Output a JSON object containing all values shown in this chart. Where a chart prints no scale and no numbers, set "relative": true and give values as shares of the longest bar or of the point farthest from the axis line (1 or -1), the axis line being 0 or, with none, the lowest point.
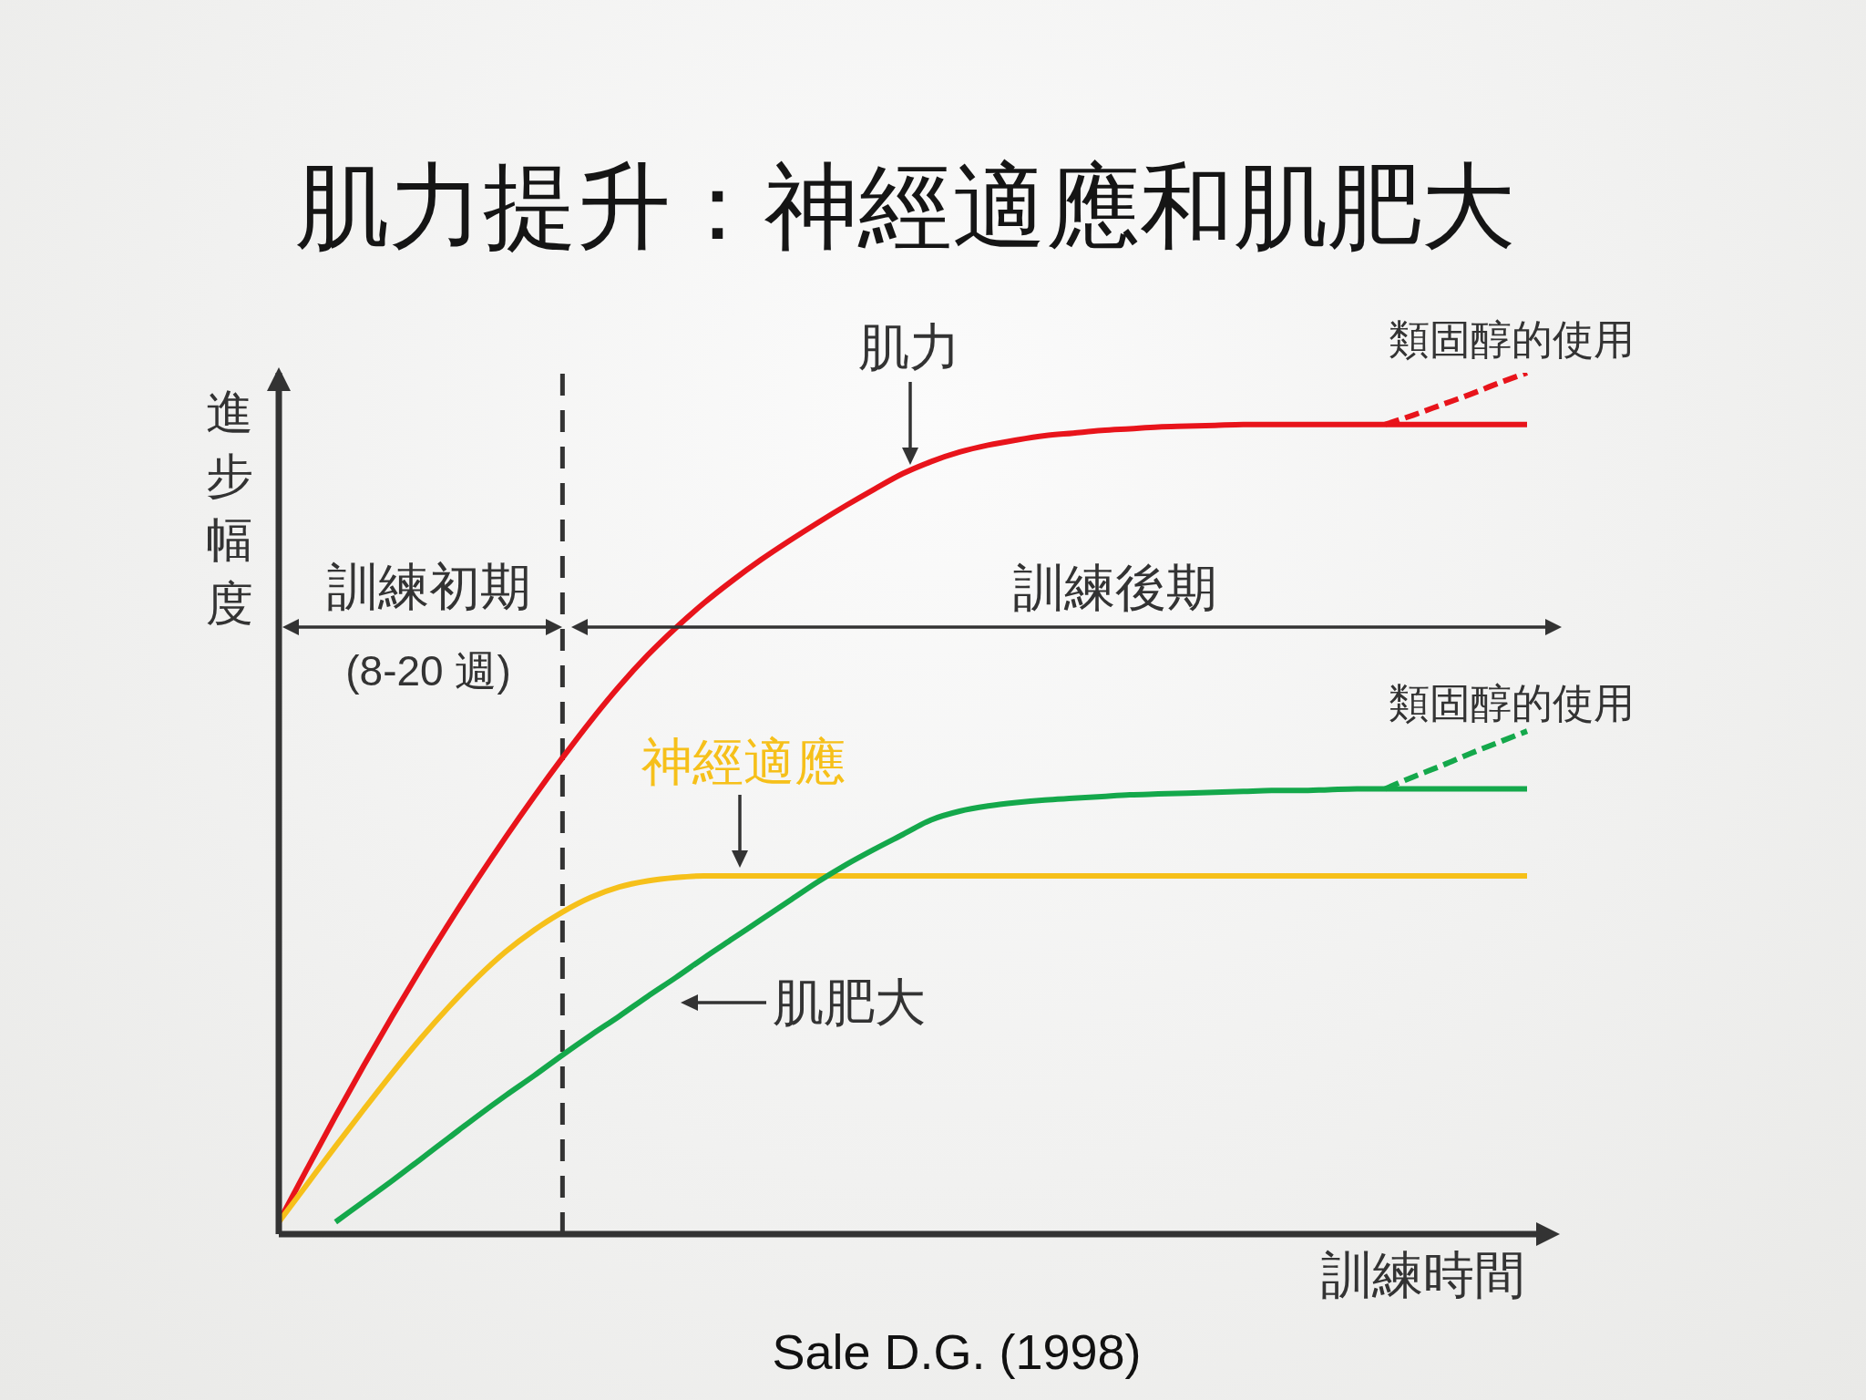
{
  "chart_data": {
    "type": "line",
    "title": "肌力提升：神經適應和肌肥大",
    "xlabel": "訓練時間",
    "ylabel": "進步幅度",
    "annotations": [
      "訓練初期",
      "(8-20 週)",
      "訓練後期",
      "Sale D.G. (1998)"
    ],
    "categories": [
      null,
      null,
      null,
      null,
      null,
      null,
      null,
      null,
      null,
      null,
      null,
      null,
      null,
      null,
      null,
      null,
      null,
      null,
      null,
      null,
      null,
      null,
      null,
      null,
      null,
      null,
      null,
      null,
      null,
      null,
      null,
      null,
      null,
      null,
      null,
      null,
      null,
      null,
      null,
      null,
      null,
      null,
      null,
      null,
      null
    ],
    "relative": true,
    "series": [
      {
        "name": "肌力",
        "color": "#e8141b",
        "values": [
          0.014,
          0.076,
          0.137,
          0.196,
          0.253,
          0.308,
          0.361,
          0.412,
          0.461,
          0.508,
          0.553,
          0.596,
          0.636,
          0.672,
          0.704,
          0.733,
          0.759,
          0.783,
          0.805,
          0.826,
          0.846,
          0.865,
          0.883,
          0.897,
          0.908,
          0.916,
          0.922,
          0.927,
          0.93,
          0.933,
          0.935,
          0.937,
          0.938,
          0.939,
          0.94,
          0.94,
          0.94,
          0.94,
          0.94,
          0.94,
          0.94,
          0.94,
          0.94,
          0.94,
          0.94
        ]
      },
      {
        "name": "神經適應",
        "color": "#f6c01a",
        "values": [
          0.014,
          0.058,
          0.102,
          0.145,
          0.187,
          0.227,
          0.264,
          0.298,
          0.328,
          0.353,
          0.374,
          0.391,
          0.403,
          0.41,
          0.414,
          0.416,
          0.416,
          0.416,
          0.416,
          0.416,
          0.416,
          0.416,
          0.416,
          0.416,
          0.416,
          0.416,
          0.416,
          0.416,
          0.416,
          0.416,
          0.416,
          0.416,
          0.416,
          0.416,
          0.416,
          0.416,
          0.416,
          0.416,
          0.416,
          0.416,
          0.416,
          0.416,
          0.416,
          0.416,
          0.416
        ]
      },
      {
        "name": "肌肥大",
        "color": "#14a84b",
        "values": [
          null,
          null,
          0.014,
          0.038,
          0.062,
          0.087,
          0.112,
          0.137,
          0.161,
          0.184,
          0.208,
          0.231,
          0.253,
          0.276,
          0.298,
          0.321,
          0.343,
          0.365,
          0.387,
          0.409,
          0.429,
          0.447,
          0.464,
          0.481,
          0.491,
          0.497,
          0.501,
          0.504,
          0.506,
          0.508,
          0.51,
          0.511,
          0.512,
          0.513,
          0.514,
          0.515,
          0.515,
          0.516,
          0.517,
          0.517,
          0.517,
          0.517,
          0.517,
          0.517,
          0.517
        ]
      },
      {
        "name": "類固醇的使用",
        "color": "#e8141b",
        "line_style": "dashed",
        "values": [
          null,
          null,
          null,
          null,
          null,
          null,
          null,
          null,
          null,
          null,
          null,
          null,
          null,
          null,
          null,
          null,
          null,
          null,
          null,
          null,
          null,
          null,
          null,
          null,
          null,
          null,
          null,
          null,
          null,
          null,
          null,
          null,
          null,
          null,
          null,
          null,
          null,
          null,
          null,
          0.94,
          0.951,
          0.963,
          0.975,
          0.988,
          1.0
        ]
      },
      {
        "name": "類固醇的使用",
        "color": "#14a84b",
        "line_style": "dashed",
        "values": [
          null,
          null,
          null,
          null,
          null,
          null,
          null,
          null,
          null,
          null,
          null,
          null,
          null,
          null,
          null,
          null,
          null,
          null,
          null,
          null,
          null,
          null,
          null,
          null,
          null,
          null,
          null,
          null,
          null,
          null,
          null,
          null,
          null,
          null,
          null,
          null,
          null,
          null,
          null,
          0.517,
          0.531,
          0.544,
          0.558,
          0.571,
          0.584
        ]
      }
    ]
  }
}
